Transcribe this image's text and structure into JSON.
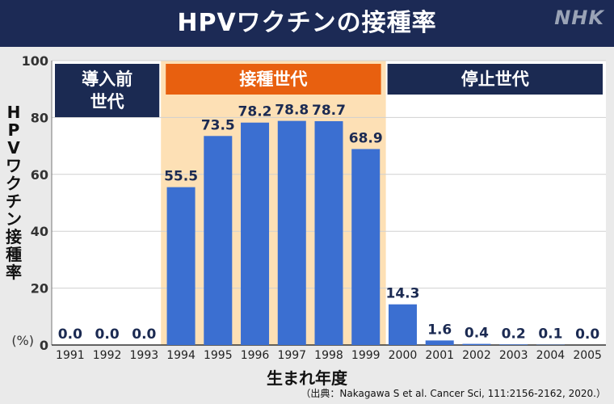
{
  "header": {
    "title": "HPVワクチンの接種率",
    "logo": "NHK"
  },
  "source": "（出典：Nakagawa S et al. Cancer Sci, 111:2156-2162, 2020.）",
  "colors": {
    "bar": "#3b6fd1",
    "header": "#1c2a55",
    "band_dark": "#1b2a52",
    "band_orange": "#e8600f",
    "highlight": "#fde0b5",
    "value_text": "#1b2a52"
  },
  "chart_data": {
    "type": "bar",
    "ylabel": "HPVワクチン接種率",
    "xlabel": "生まれ年度",
    "unit_label": "(%)",
    "ylim": [
      0,
      100
    ],
    "yticks": [
      0,
      20,
      40,
      60,
      80,
      100
    ],
    "grid": true,
    "categories": [
      "1991",
      "1992",
      "1993",
      "1994",
      "1995",
      "1996",
      "1997",
      "1998",
      "1999",
      "2000",
      "2001",
      "2002",
      "2003",
      "2004",
      "2005"
    ],
    "values": [
      0.0,
      0.0,
      0.0,
      55.5,
      73.5,
      78.2,
      78.8,
      78.7,
      68.9,
      14.3,
      1.6,
      0.4,
      0.2,
      0.1,
      0.0
    ],
    "value_labels": [
      "0.0",
      "0.0",
      "0.0",
      "55.5",
      "73.5",
      "78.2",
      "78.8",
      "78.7",
      "68.9",
      "14.3",
      "1.6",
      "0.4",
      "0.2",
      "0.1",
      "0.0"
    ],
    "bands": [
      {
        "label": "導入前\n世代",
        "from": "1991",
        "to": "1993",
        "style": "dark"
      },
      {
        "label": "接種世代",
        "from": "1994",
        "to": "1999",
        "style": "orange"
      },
      {
        "label": "停止世代",
        "from": "2000",
        "to": "2005",
        "style": "dark"
      }
    ]
  }
}
